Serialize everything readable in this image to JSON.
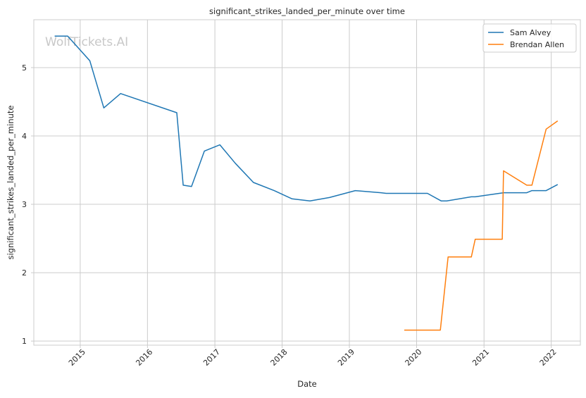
{
  "chart_data": {
    "type": "line",
    "title": "significant_strikes_landed_per_minute over time",
    "xlabel": "Date",
    "ylabel": "significant_strikes_landed_per_minute",
    "watermark": "WolfTickets.AI",
    "xlim": [
      "2014-04-24",
      "2022-06-08"
    ],
    "ylim": [
      0.94,
      5.7
    ],
    "x_ticks": [
      "2015-01-01",
      "2016-01-01",
      "2017-01-01",
      "2018-01-01",
      "2019-01-01",
      "2020-01-01",
      "2021-01-01",
      "2022-01-01"
    ],
    "x_tick_labels": [
      "2015",
      "2016",
      "2017",
      "2018",
      "2019",
      "2020",
      "2021",
      "2022"
    ],
    "y_ticks": [
      1,
      2,
      3,
      4,
      5
    ],
    "y_tick_labels": [
      "1",
      "2",
      "3",
      "4",
      "5"
    ],
    "grid": true,
    "legend_position": "top-right",
    "series": [
      {
        "name": "Sam Alvey",
        "color": "#1f77b4",
        "x": [
          "2014-08-15",
          "2014-10-25",
          "2015-02-22",
          "2015-05-09",
          "2015-08-08",
          "2016-06-08",
          "2016-07-13",
          "2016-08-27",
          "2016-11-05",
          "2017-01-28",
          "2017-04-22",
          "2017-07-29",
          "2017-11-19",
          "2018-02-24",
          "2018-06-01",
          "2018-09-15",
          "2019-02-02",
          "2019-06-22",
          "2019-07-20",
          "2020-02-29",
          "2020-05-13",
          "2020-06-13",
          "2020-10-24",
          "2020-11-14",
          "2021-04-17",
          "2021-08-21",
          "2021-09-18",
          "2021-12-04",
          "2022-02-05"
        ],
        "y": [
          5.46,
          5.46,
          5.1,
          4.41,
          4.62,
          4.34,
          3.28,
          3.26,
          3.78,
          3.87,
          3.6,
          3.32,
          3.2,
          3.08,
          3.05,
          3.1,
          3.2,
          3.17,
          3.16,
          3.16,
          3.05,
          3.05,
          3.11,
          3.11,
          3.17,
          3.17,
          3.2,
          3.2,
          3.29
        ]
      },
      {
        "name": "Brendan Allen",
        "color": "#ff7f0e",
        "x": [
          "2019-10-26",
          "2020-05-09",
          "2020-06-20",
          "2020-10-24",
          "2020-11-14",
          "2021-04-10",
          "2021-04-17",
          "2021-08-21",
          "2021-09-18",
          "2021-12-04",
          "2022-02-05"
        ],
        "y": [
          1.16,
          1.16,
          2.23,
          2.23,
          2.49,
          2.49,
          3.49,
          3.28,
          3.28,
          4.1,
          4.22
        ]
      }
    ]
  }
}
